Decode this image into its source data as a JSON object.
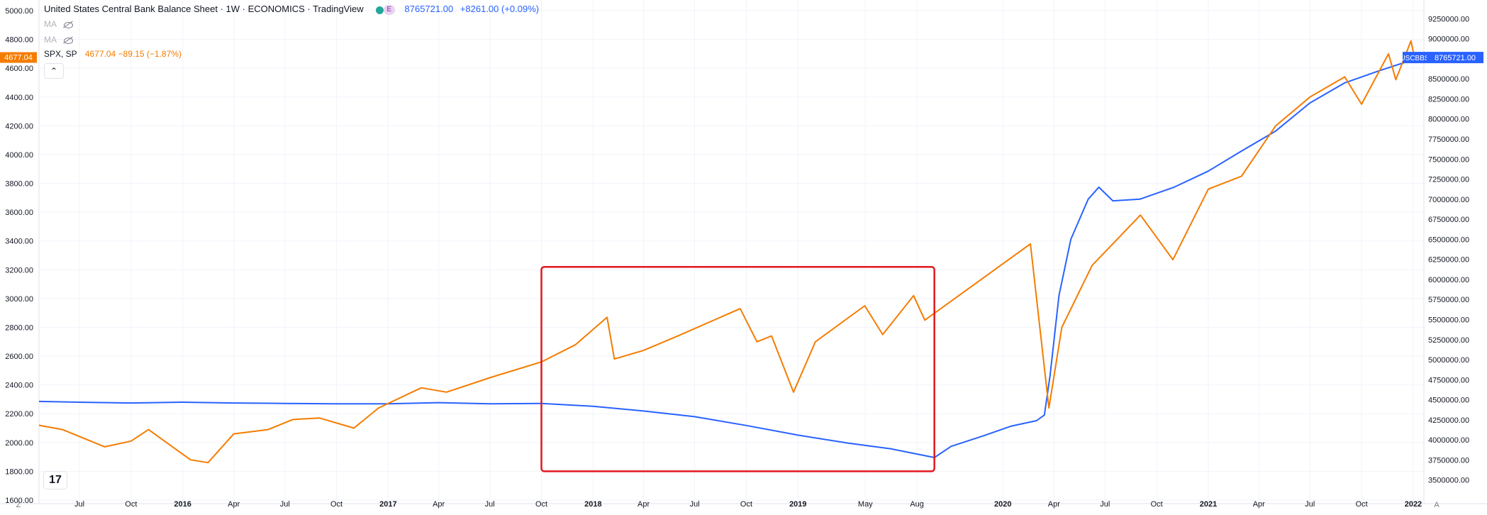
{
  "header": {
    "title": "United States Central Bank Balance Sheet · 1W · ECONOMICS · TradingView",
    "badge": "E",
    "last_value": "8765721.00",
    "change": "+8261.00 (+0.09%)"
  },
  "indicators": [
    {
      "label": "MA"
    },
    {
      "label": "MA"
    }
  ],
  "spx": {
    "symbol": "SPX, SP",
    "value_text": "4677.04 −89.15 (−1.87%)",
    "price_tag": "4677.04",
    "collapse_glyph": "⌃"
  },
  "logo_text": "17",
  "corner_left": "Z",
  "corner_right": "A",
  "colors": {
    "balance_sheet": "#2962ff",
    "spx": "#f57c00",
    "highlight_box": "#e0181e",
    "grid": "#f0f3fa",
    "axis_text": "#131722"
  },
  "chart_data": {
    "type": "line",
    "x_ticks": [
      "Jul",
      "Oct",
      "2016",
      "Apr",
      "Jul",
      "Oct",
      "2017",
      "Apr",
      "Jul",
      "Oct",
      "2018",
      "Apr",
      "Jul",
      "Oct",
      "2019",
      "May",
      "Aug",
      "2020",
      "Apr",
      "Jul",
      "Oct",
      "2021",
      "Apr",
      "Jul",
      "Oct",
      "2022"
    ],
    "left_axis": {
      "ylim": [
        1600,
        5000
      ],
      "ticks": [
        "5000.00",
        "4800.00",
        "4600.00",
        "4400.00",
        "4200.00",
        "4000.00",
        "3800.00",
        "3600.00",
        "3400.00",
        "3200.00",
        "3000.00",
        "2800.00",
        "2600.00",
        "2400.00",
        "2200.00",
        "2000.00",
        "1800.00",
        "1600.00"
      ]
    },
    "right_axis": {
      "ylim": [
        3250000,
        9350000
      ],
      "ticks": [
        "9250000.00",
        "9000000.00",
        "8750000.00",
        "8500000.00",
        "8250000.00",
        "8000000.00",
        "7750000.00",
        "7500000.00",
        "7250000.00",
        "7000000.00",
        "6750000.00",
        "6500000.00",
        "6250000.00",
        "6000000.00",
        "5750000.00",
        "5500000.00",
        "5250000.00",
        "5000000.00",
        "4750000.00",
        "4500000.00",
        "4250000.00",
        "4000000.00",
        "3750000.00",
        "3500000.00"
      ]
    },
    "series": [
      {
        "name": "USCBBS",
        "axis": "right",
        "last_label": "8765721.00",
        "points": [
          [
            "2015-04-20",
            4480000
          ],
          [
            "2015-07-01",
            4470000
          ],
          [
            "2015-10-01",
            4460000
          ],
          [
            "2016-01-01",
            4470000
          ],
          [
            "2016-04-01",
            4460000
          ],
          [
            "2016-07-01",
            4455000
          ],
          [
            "2016-10-01",
            4450000
          ],
          [
            "2017-01-01",
            4450000
          ],
          [
            "2017-04-01",
            4465000
          ],
          [
            "2017-07-01",
            4450000
          ],
          [
            "2017-10-01",
            4455000
          ],
          [
            "2018-01-01",
            4420000
          ],
          [
            "2018-04-01",
            4360000
          ],
          [
            "2018-07-01",
            4290000
          ],
          [
            "2018-10-01",
            4180000
          ],
          [
            "2019-01-01",
            4060000
          ],
          [
            "2019-04-01",
            3960000
          ],
          [
            "2019-06-15",
            3890000
          ],
          [
            "2019-09-01",
            3780000
          ],
          [
            "2019-10-01",
            3920000
          ],
          [
            "2019-12-01",
            4060000
          ],
          [
            "2020-01-15",
            4170000
          ],
          [
            "2020-03-01",
            4240000
          ],
          [
            "2020-03-15",
            4310000
          ],
          [
            "2020-03-25",
            4800000
          ],
          [
            "2020-04-10",
            5800000
          ],
          [
            "2020-05-01",
            6500000
          ],
          [
            "2020-06-01",
            7000000
          ],
          [
            "2020-06-20",
            7150000
          ],
          [
            "2020-07-15",
            6980000
          ],
          [
            "2020-09-01",
            7000000
          ],
          [
            "2020-11-01",
            7150000
          ],
          [
            "2021-01-01",
            7350000
          ],
          [
            "2021-03-01",
            7600000
          ],
          [
            "2021-05-01",
            7850000
          ],
          [
            "2021-07-01",
            8200000
          ],
          [
            "2021-09-01",
            8450000
          ],
          [
            "2021-11-01",
            8600000
          ],
          [
            "2021-12-15",
            8700000
          ],
          [
            "2022-01-03",
            8765721
          ]
        ]
      },
      {
        "name": "SPX, SP",
        "axis": "left",
        "last_label": "4677.04",
        "points": [
          [
            "2015-04-20",
            2120
          ],
          [
            "2015-06-01",
            2090
          ],
          [
            "2015-08-15",
            1970
          ],
          [
            "2015-10-01",
            2010
          ],
          [
            "2015-11-01",
            2090
          ],
          [
            "2016-01-15",
            1880
          ],
          [
            "2016-02-15",
            1860
          ],
          [
            "2016-04-01",
            2060
          ],
          [
            "2016-06-01",
            2090
          ],
          [
            "2016-07-15",
            2160
          ],
          [
            "2016-09-01",
            2170
          ],
          [
            "2016-11-01",
            2100
          ],
          [
            "2016-12-15",
            2240
          ],
          [
            "2017-03-01",
            2380
          ],
          [
            "2017-04-15",
            2350
          ],
          [
            "2017-07-01",
            2450
          ],
          [
            "2017-10-01",
            2560
          ],
          [
            "2017-12-01",
            2680
          ],
          [
            "2018-01-26",
            2870
          ],
          [
            "2018-02-08",
            2580
          ],
          [
            "2018-04-01",
            2640
          ],
          [
            "2018-06-01",
            2740
          ],
          [
            "2018-09-20",
            2930
          ],
          [
            "2018-10-20",
            2700
          ],
          [
            "2018-11-15",
            2740
          ],
          [
            "2018-12-24",
            2350
          ],
          [
            "2019-02-01",
            2700
          ],
          [
            "2019-04-30",
            2950
          ],
          [
            "2019-06-01",
            2750
          ],
          [
            "2019-07-26",
            3020
          ],
          [
            "2019-08-15",
            2850
          ],
          [
            "2019-11-01",
            3070
          ],
          [
            "2020-02-19",
            3380
          ],
          [
            "2020-03-23",
            2240
          ],
          [
            "2020-04-15",
            2800
          ],
          [
            "2020-06-08",
            3230
          ],
          [
            "2020-09-02",
            3580
          ],
          [
            "2020-10-30",
            3270
          ],
          [
            "2021-01-01",
            3760
          ],
          [
            "2021-03-01",
            3850
          ],
          [
            "2021-05-01",
            4200
          ],
          [
            "2021-07-01",
            4400
          ],
          [
            "2021-09-01",
            4540
          ],
          [
            "2021-10-01",
            4350
          ],
          [
            "2021-11-18",
            4700
          ],
          [
            "2021-12-01",
            4520
          ],
          [
            "2021-12-28",
            4790
          ],
          [
            "2022-01-03",
            4677.04
          ]
        ]
      }
    ],
    "annotation": {
      "type": "rectangle",
      "from": [
        "2017-10-01",
        3220
      ],
      "to": [
        "2019-09-01",
        1800
      ]
    }
  }
}
